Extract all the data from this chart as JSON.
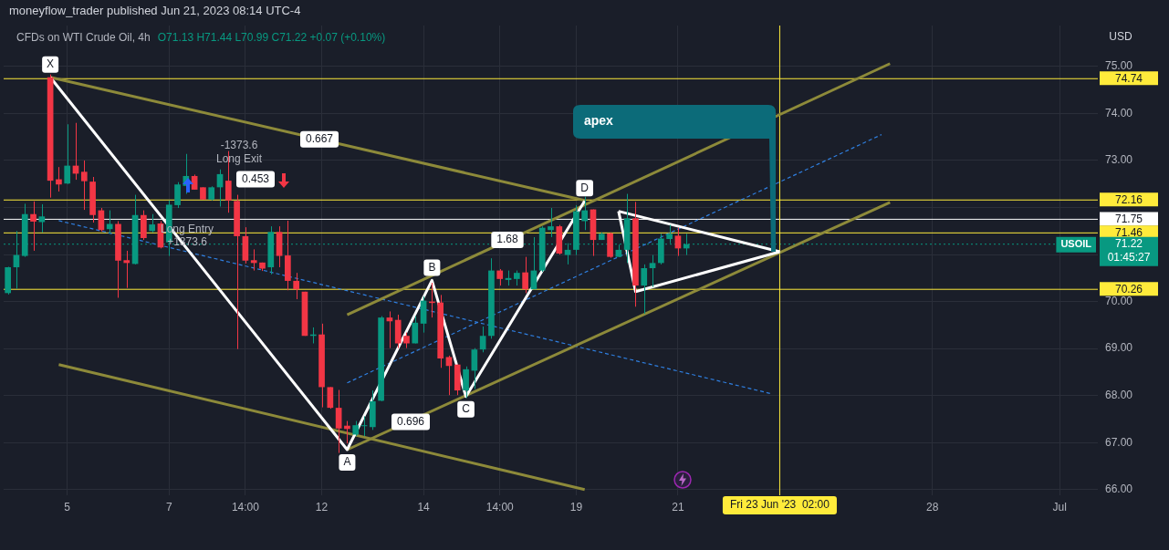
{
  "chart_data": {
    "type": "candlestick",
    "title": "CFDs on WTI Crude Oil, 4h",
    "subtitle": "O71.13 H71.44 L70.99 C71.22 +0.07 (+0.10%)",
    "ylabel": "USD",
    "categories": [
      null,
      null,
      null,
      null,
      null,
      null,
      null,
      "5",
      null,
      null,
      null,
      null,
      null,
      null,
      null,
      null,
      null,
      null,
      null,
      "7",
      null,
      null,
      null,
      null,
      null,
      null,
      null,
      null,
      "14:00",
      null,
      null,
      null,
      null,
      null,
      null,
      null,
      null,
      "12",
      null,
      null,
      null,
      null,
      null,
      null,
      null,
      null,
      null,
      null,
      null,
      "14",
      null,
      null,
      null,
      null,
      null,
      null,
      null,
      null,
      "14:00",
      null,
      null,
      null,
      null,
      null,
      null,
      null,
      null,
      "19",
      null,
      null,
      null,
      null,
      null,
      null,
      null,
      null,
      null,
      null,
      null,
      "21",
      null,
      null,
      null,
      null,
      null,
      null,
      null,
      null,
      null,
      null,
      null,
      "Fri 23 Jun '23  02:00",
      null,
      null,
      null,
      null,
      null,
      null,
      null,
      null,
      null,
      null,
      null,
      null,
      null,
      null,
      null,
      null,
      null,
      "28",
      null,
      null,
      null,
      null,
      null,
      null,
      null,
      null,
      null,
      null,
      null,
      null,
      null,
      null,
      "Jul",
      null,
      null,
      null,
      null
    ],
    "colors": [
      "#089981",
      "#089981",
      "#089981",
      "#f23645",
      "#089981",
      "#f23645",
      "#f23645",
      "#089981",
      "#f23645",
      "#f23645",
      "#f23645",
      "#f23645",
      "#089981",
      "#f23645",
      "#f23645",
      "#089981",
      "#f23645",
      "#089981",
      "#f23645",
      "#089981",
      "#089981",
      "#089981",
      "#f23645",
      "#f23645",
      "#089981",
      "#089981",
      "#f23645",
      "#f23645",
      "#f23645",
      "#f23645",
      "#f23645",
      "#089981",
      "#f23645",
      "#f23645",
      "#f23645",
      "#f23645",
      "#089981",
      "#f23645",
      "#f23645",
      "#f23645",
      "#f23645",
      "#089981",
      "#089981",
      "#089981",
      "#089981",
      "#f23645",
      "#f23645",
      "#f23645",
      "#089981",
      "#089981",
      "#f23645",
      "#f23645",
      "#f23645",
      "#f23645",
      "#089981",
      "#089981",
      "#089981",
      "#089981",
      "#f23645",
      "#089981",
      "#089981",
      "#f23645",
      "#089981",
      "#089981",
      "#089981",
      "#f23645",
      "#089981",
      "#089981",
      "#089981",
      "#f23645",
      "#089981",
      "#f23645",
      "#089981",
      "#089981",
      "#f23645",
      "#089981",
      "#089981",
      "#089981",
      "#089981",
      "#f23645",
      "#089981",
      null,
      null,
      null,
      null,
      null,
      null,
      null,
      null,
      null,
      null,
      null,
      null,
      null,
      null,
      null,
      null,
      null,
      null,
      null,
      null,
      null,
      null,
      null,
      null,
      null,
      null,
      null,
      null,
      null,
      null,
      null,
      null,
      null,
      null,
      null,
      null,
      null,
      null,
      null,
      null,
      null,
      null,
      null,
      null,
      null,
      null,
      null,
      null
    ],
    "ohlc": [
      [
        70.18,
        70.74,
        70.15,
        70.73
      ],
      [
        70.73,
        71.5,
        70.27,
        70.99
      ],
      [
        70.97,
        72.08,
        70.95,
        71.86
      ],
      [
        71.86,
        72.13,
        71.08,
        71.7
      ],
      [
        71.69,
        72.07,
        71.47,
        71.81
      ],
      [
        74.77,
        74.83,
        72.21,
        72.57
      ],
      [
        72.6,
        72.86,
        72.34,
        72.49
      ],
      [
        72.51,
        73.77,
        72.5,
        72.89
      ],
      [
        72.89,
        73.8,
        72.59,
        72.72
      ],
      [
        72.76,
        73.0,
        71.95,
        72.56
      ],
      [
        72.55,
        72.65,
        71.68,
        71.84
      ],
      [
        71.94,
        71.99,
        71.49,
        71.52
      ],
      [
        71.54,
        71.94,
        71.44,
        71.65
      ],
      [
        71.65,
        71.71,
        70.08,
        70.87
      ],
      [
        70.88,
        71.08,
        70.29,
        70.82
      ],
      [
        70.8,
        72.27,
        70.79,
        71.84
      ],
      [
        71.84,
        71.94,
        71.31,
        71.35
      ],
      [
        71.5,
        71.86,
        71.47,
        71.64
      ],
      [
        71.66,
        71.71,
        71.13,
        71.15
      ],
      [
        71.26,
        72.15,
        70.97,
        72.06
      ],
      [
        72.05,
        72.54,
        71.99,
        72.49
      ],
      [
        72.46,
        73.14,
        72.29,
        72.67
      ],
      [
        72.67,
        72.7,
        72.38,
        72.38
      ],
      [
        72.43,
        72.43,
        72.17,
        72.17
      ],
      [
        72.17,
        72.45,
        72.15,
        72.43
      ],
      [
        72.43,
        72.81,
        72.02,
        72.71
      ],
      [
        72.57,
        73.2,
        71.89,
        72.15
      ],
      [
        72.14,
        72.27,
        68.99,
        71.39
      ],
      [
        71.39,
        71.58,
        70.81,
        70.87
      ],
      [
        70.88,
        71.11,
        70.66,
        70.82
      ],
      [
        70.83,
        70.83,
        70.65,
        70.7
      ],
      [
        70.73,
        71.6,
        70.58,
        71.48
      ],
      [
        71.48,
        71.6,
        70.73,
        70.97
      ],
      [
        70.98,
        71.72,
        70.24,
        70.44
      ],
      [
        70.44,
        70.61,
        70.05,
        70.26
      ],
      [
        70.21,
        70.21,
        69.27,
        69.27
      ],
      [
        69.27,
        69.45,
        69.11,
        69.3
      ],
      [
        69.3,
        69.53,
        67.75,
        68.18
      ],
      [
        68.18,
        68.18,
        67.72,
        67.74
      ],
      [
        67.74,
        68.12,
        66.78,
        67.3
      ],
      [
        67.36,
        67.46,
        66.98,
        67.29
      ],
      [
        67.17,
        67.46,
        67.14,
        67.37
      ],
      [
        67.35,
        67.56,
        67.14,
        67.36
      ],
      [
        67.33,
        68.11,
        67.27,
        67.88
      ],
      [
        67.89,
        69.69,
        67.88,
        69.66
      ],
      [
        69.66,
        69.79,
        69.01,
        69.58
      ],
      [
        69.61,
        69.72,
        69.01,
        69.11
      ],
      [
        69.27,
        69.34,
        69.01,
        69.11
      ],
      [
        69.11,
        69.69,
        69.11,
        69.55
      ],
      [
        69.53,
        70.11,
        69.34,
        70.02
      ],
      [
        70.0,
        70.4,
        69.66,
        69.97
      ],
      [
        69.98,
        70.14,
        68.59,
        68.79
      ],
      [
        68.82,
        68.85,
        68.01,
        68.63
      ],
      [
        68.66,
        68.66,
        68.01,
        68.11
      ],
      [
        68.11,
        68.62,
        67.95,
        68.56
      ],
      [
        68.53,
        69.01,
        68.14,
        68.98
      ],
      [
        68.98,
        69.47,
        68.92,
        69.27
      ],
      [
        69.27,
        70.92,
        69.21,
        70.66
      ],
      [
        70.66,
        70.69,
        70.34,
        70.48
      ],
      [
        70.46,
        70.66,
        70.34,
        70.5
      ],
      [
        70.48,
        70.66,
        70.34,
        70.61
      ],
      [
        70.62,
        70.95,
        70.18,
        70.26
      ],
      [
        70.26,
        71.37,
        70.26,
        70.66
      ],
      [
        70.66,
        71.6,
        70.63,
        71.57
      ],
      [
        71.52,
        71.99,
        71.37,
        71.6
      ],
      [
        71.6,
        71.63,
        71.0,
        71.02
      ],
      [
        70.99,
        71.24,
        70.79,
        71.1
      ],
      [
        71.1,
        72.05,
        70.99,
        71.92
      ],
      [
        71.71,
        72.23,
        71.52,
        71.94
      ],
      [
        71.96,
        71.96,
        70.97,
        71.31
      ],
      [
        71.31,
        71.47,
        71.31,
        71.44
      ],
      [
        71.45,
        71.47,
        70.93,
        70.95
      ],
      [
        70.95,
        71.21,
        70.95,
        71.1
      ],
      [
        71.1,
        72.29,
        70.82,
        71.77
      ],
      [
        71.77,
        72.12,
        69.89,
        70.34
      ],
      [
        70.34,
        70.79,
        69.74,
        70.71
      ],
      [
        70.71,
        70.99,
        70.31,
        70.82
      ],
      [
        70.82,
        71.44,
        70.79,
        71.34
      ],
      [
        71.33,
        71.63,
        71.24,
        71.44
      ],
      [
        71.4,
        71.57,
        70.97,
        71.13
      ],
      [
        71.13,
        71.44,
        70.99,
        71.22
      ],
      null,
      null,
      null,
      null,
      null,
      null,
      null,
      null,
      null,
      null,
      null,
      null,
      null,
      null,
      null,
      null,
      null,
      null,
      null,
      null,
      null,
      null,
      null,
      null,
      null,
      null,
      null,
      null,
      null,
      null,
      null,
      null,
      null,
      null,
      null,
      null,
      null,
      null,
      null,
      null,
      null,
      null,
      null,
      null,
      null,
      null,
      null,
      null
    ],
    "series": [
      {
        "type": "line",
        "color": "#ffffff",
        "values": [
          null,
          null,
          null,
          null,
          null,
          74.77,
          null,
          null,
          null,
          null,
          null,
          null,
          null,
          null,
          null,
          null,
          null,
          null,
          null,
          null,
          null,
          null,
          null,
          null,
          null,
          null,
          null,
          null,
          null,
          null,
          null,
          null,
          null,
          null,
          null,
          null,
          null,
          null,
          null,
          null,
          66.85,
          null,
          null,
          null,
          null,
          null,
          null,
          null,
          null,
          null,
          70.45,
          null,
          null,
          null,
          67.98,
          null,
          null,
          null,
          null,
          null,
          null,
          null,
          null,
          null,
          null,
          null,
          null,
          null,
          72.14,
          null,
          null,
          null,
          null,
          null,
          null,
          null,
          null,
          null,
          null,
          null,
          null,
          null,
          null,
          null,
          null,
          null,
          null,
          null,
          null,
          null,
          null,
          null,
          null,
          null,
          null,
          null,
          null,
          null,
          null,
          null,
          null,
          null,
          null,
          null,
          null,
          null,
          null,
          null,
          null,
          null,
          null,
          null,
          null,
          null,
          null,
          null,
          null,
          null,
          null,
          null,
          null,
          null,
          null,
          null,
          null,
          null,
          null,
          null,
          null
        ],
        "value_labels": [
          null,
          null,
          null,
          null,
          null,
          "X",
          null,
          null,
          null,
          null,
          null,
          null,
          null,
          null,
          null,
          null,
          null,
          null,
          null,
          null,
          null,
          null,
          null,
          null,
          null,
          null,
          null,
          null,
          null,
          null,
          null,
          null,
          null,
          null,
          null,
          null,
          null,
          null,
          null,
          null,
          "A",
          null,
          null,
          null,
          null,
          null,
          null,
          null,
          null,
          null,
          "B",
          null,
          null,
          null,
          "C",
          null,
          null,
          null,
          null,
          null,
          null,
          null,
          null,
          null,
          null,
          null,
          null,
          null,
          "D",
          null,
          null,
          null,
          null,
          null,
          null,
          null,
          null,
          null,
          null,
          null,
          null,
          null,
          null,
          null,
          null,
          null,
          null,
          null,
          null,
          null,
          null,
          null,
          null,
          null,
          null,
          null,
          null,
          null,
          null,
          null,
          null,
          null,
          null,
          null,
          null,
          null,
          null,
          null,
          null,
          null,
          null,
          null,
          null,
          null,
          null,
          null,
          null,
          null,
          null,
          null,
          null,
          null,
          null,
          null,
          null,
          null,
          null,
          null,
          null
        ]
      },
      {
        "type": "line",
        "color": "#ffffff",
        "values": [
          null,
          null,
          null,
          null,
          null,
          null,
          null,
          null,
          null,
          null,
          null,
          null,
          null,
          null,
          null,
          null,
          null,
          null,
          null,
          null,
          null,
          null,
          null,
          null,
          null,
          null,
          null,
          null,
          null,
          null,
          null,
          null,
          null,
          null,
          null,
          null,
          null,
          null,
          null,
          null,
          null,
          null,
          null,
          null,
          null,
          null,
          null,
          null,
          null,
          null,
          null,
          null,
          null,
          null,
          null,
          null,
          null,
          null,
          null,
          null,
          null,
          null,
          null,
          null,
          null,
          null,
          null,
          null,
          null,
          null,
          null,
          null,
          71.92,
          null,
          null,
          null,
          null,
          null,
          null,
          null,
          null,
          null,
          null,
          null,
          null,
          null,
          null,
          null,
          null,
          null,
          null,
          71.06,
          null,
          null,
          null,
          null,
          null,
          null,
          null,
          null,
          null,
          null,
          null,
          null,
          null,
          null,
          null,
          null,
          null,
          null,
          null,
          null,
          null,
          null,
          null,
          null,
          null,
          null,
          null,
          null,
          null,
          null,
          null,
          null,
          null,
          null,
          null,
          null,
          null
        ]
      },
      {
        "type": "line",
        "color": "#ffffff",
        "values": [
          null,
          null,
          null,
          null,
          null,
          null,
          null,
          null,
          null,
          null,
          null,
          null,
          null,
          null,
          null,
          null,
          null,
          null,
          null,
          null,
          null,
          null,
          null,
          null,
          null,
          null,
          null,
          null,
          null,
          null,
          null,
          null,
          null,
          null,
          null,
          null,
          null,
          null,
          null,
          null,
          null,
          null,
          null,
          null,
          null,
          null,
          null,
          null,
          null,
          null,
          null,
          null,
          null,
          null,
          null,
          null,
          null,
          null,
          null,
          null,
          null,
          null,
          null,
          null,
          null,
          null,
          null,
          null,
          null,
          null,
          null,
          null,
          71.92,
          null,
          70.21,
          null,
          null,
          null,
          null,
          null,
          null,
          null,
          null,
          null,
          null,
          null,
          null,
          null,
          null,
          null,
          null,
          71.06,
          null,
          null,
          null,
          null,
          null,
          null,
          null,
          null,
          null,
          null,
          null,
          null,
          null,
          null,
          null,
          null,
          null,
          null,
          null,
          null,
          null,
          null,
          null,
          null,
          null,
          null,
          null,
          null,
          null,
          null,
          null,
          null,
          null,
          null,
          null,
          null,
          null
        ]
      },
      {
        "type": "line",
        "color": "#8d8a3a",
        "values": [
          null,
          null,
          null,
          null,
          null,
          74.77,
          null,
          null,
          null,
          null,
          null,
          null,
          null,
          null,
          null,
          null,
          null,
          null,
          null,
          null,
          null,
          null,
          null,
          null,
          null,
          null,
          null,
          null,
          null,
          null,
          null,
          null,
          null,
          null,
          null,
          null,
          null,
          null,
          null,
          null,
          null,
          null,
          null,
          null,
          null,
          null,
          null,
          null,
          null,
          null,
          null,
          null,
          null,
          null,
          null,
          null,
          null,
          null,
          null,
          null,
          null,
          null,
          null,
          null,
          null,
          null,
          null,
          null,
          72.15,
          null,
          null,
          null,
          null,
          null,
          null,
          null,
          null,
          null,
          null,
          null,
          null,
          null,
          null,
          null,
          null,
          null,
          null,
          null,
          null,
          null,
          null,
          null,
          null,
          null,
          null,
          null,
          null,
          null,
          null,
          null,
          null,
          null,
          null,
          null,
          null,
          null,
          null,
          null,
          null,
          null,
          null,
          null,
          null,
          null,
          null,
          null,
          null,
          null,
          null,
          null,
          null,
          null,
          null,
          null,
          null,
          null,
          null,
          null,
          null
        ]
      },
      {
        "type": "line",
        "color": "#8d8a3a",
        "values": [
          null,
          null,
          null,
          null,
          null,
          null,
          68.66,
          null,
          null,
          null,
          null,
          null,
          null,
          null,
          null,
          null,
          null,
          null,
          null,
          null,
          null,
          null,
          null,
          null,
          null,
          null,
          null,
          null,
          null,
          null,
          null,
          null,
          null,
          null,
          null,
          null,
          null,
          null,
          null,
          null,
          null,
          null,
          null,
          null,
          null,
          null,
          null,
          null,
          null,
          null,
          null,
          null,
          null,
          null,
          null,
          null,
          null,
          null,
          null,
          null,
          null,
          null,
          null,
          null,
          null,
          null,
          null,
          null,
          66.0,
          null,
          null,
          null,
          null,
          null,
          null,
          null,
          null,
          null,
          null,
          null,
          null,
          null,
          null,
          null,
          null,
          null,
          null,
          null,
          null,
          null,
          null,
          null,
          null,
          null,
          null,
          null,
          null,
          null,
          null,
          null,
          null,
          null,
          null,
          null,
          null,
          null,
          null,
          null,
          null,
          null,
          null,
          null,
          null,
          null,
          null,
          null,
          null,
          null,
          null,
          null,
          null,
          null,
          null,
          null,
          null,
          null,
          null,
          null,
          null
        ]
      },
      {
        "type": "line",
        "color": "#8d8a3a",
        "values": [
          null,
          null,
          null,
          null,
          null,
          null,
          null,
          null,
          null,
          null,
          null,
          null,
          null,
          null,
          null,
          null,
          null,
          null,
          null,
          null,
          null,
          null,
          null,
          null,
          null,
          null,
          null,
          null,
          null,
          null,
          null,
          null,
          null,
          null,
          null,
          null,
          null,
          null,
          null,
          null,
          69.72,
          null,
          null,
          null,
          null,
          null,
          null,
          null,
          null,
          null,
          null,
          null,
          null,
          null,
          null,
          null,
          null,
          null,
          null,
          null,
          null,
          null,
          null,
          null,
          null,
          null,
          null,
          null,
          null,
          null,
          null,
          null,
          null,
          null,
          null,
          null,
          null,
          null,
          null,
          null,
          null,
          null,
          null,
          null,
          null,
          null,
          null,
          null,
          null,
          null,
          null,
          null,
          null,
          null,
          null,
          null,
          null,
          null,
          null,
          null,
          null,
          null,
          null,
          null,
          75.06,
          null,
          null,
          null,
          null,
          null,
          null,
          null,
          null,
          null,
          null,
          null,
          null,
          null,
          null,
          null,
          null,
          null,
          null,
          null,
          null,
          null,
          null,
          null,
          null
        ]
      },
      {
        "type": "line",
        "color": "#8d8a3a",
        "values": [
          null,
          null,
          null,
          null,
          null,
          null,
          null,
          null,
          null,
          null,
          null,
          null,
          null,
          null,
          null,
          null,
          null,
          null,
          null,
          null,
          null,
          null,
          null,
          null,
          null,
          null,
          null,
          null,
          null,
          null,
          null,
          null,
          null,
          null,
          null,
          null,
          null,
          null,
          null,
          null,
          66.85,
          null,
          null,
          null,
          null,
          null,
          null,
          null,
          null,
          null,
          null,
          null,
          null,
          null,
          null,
          null,
          null,
          null,
          null,
          null,
          null,
          null,
          null,
          null,
          null,
          null,
          null,
          null,
          null,
          null,
          null,
          null,
          null,
          null,
          null,
          null,
          null,
          null,
          null,
          null,
          null,
          null,
          null,
          null,
          null,
          null,
          null,
          null,
          null,
          null,
          null,
          null,
          null,
          null,
          null,
          null,
          null,
          null,
          null,
          null,
          null,
          null,
          null,
          null,
          72.11,
          null,
          null,
          null,
          null,
          null,
          null,
          null,
          null,
          null,
          null,
          null,
          null,
          null,
          null,
          null,
          null,
          null,
          null,
          null,
          null,
          null,
          null,
          null,
          null
        ]
      },
      {
        "type": "line",
        "color": "#2f7fe0",
        "line_style": "dashed",
        "values": [
          null,
          null,
          null,
          null,
          null,
          null,
          71.72,
          null,
          null,
          null,
          null,
          null,
          null,
          null,
          null,
          null,
          null,
          null,
          null,
          null,
          null,
          null,
          null,
          null,
          null,
          null,
          null,
          null,
          null,
          null,
          null,
          null,
          null,
          null,
          null,
          null,
          null,
          null,
          null,
          null,
          null,
          null,
          null,
          null,
          null,
          null,
          null,
          null,
          null,
          null,
          null,
          null,
          null,
          null,
          null,
          null,
          null,
          null,
          null,
          null,
          null,
          null,
          null,
          null,
          null,
          null,
          null,
          null,
          null,
          null,
          null,
          null,
          null,
          null,
          null,
          null,
          null,
          null,
          null,
          null,
          null,
          null,
          null,
          null,
          null,
          null,
          null,
          null,
          null,
          null,
          68.04,
          null,
          null,
          null,
          null,
          null,
          null,
          null,
          null,
          null,
          null,
          null,
          null,
          null,
          null,
          null,
          null,
          null,
          null,
          null,
          null,
          null,
          null,
          null,
          null,
          null,
          null,
          null,
          null,
          null,
          null,
          null,
          null,
          null,
          null,
          null,
          null,
          null,
          null
        ]
      },
      {
        "type": "line",
        "color": "#2f7fe0",
        "line_style": "dashed",
        "values": [
          null,
          null,
          null,
          null,
          null,
          null,
          null,
          null,
          null,
          null,
          null,
          null,
          null,
          null,
          null,
          null,
          null,
          null,
          null,
          null,
          null,
          null,
          null,
          null,
          null,
          null,
          null,
          null,
          null,
          null,
          null,
          null,
          null,
          null,
          null,
          null,
          null,
          null,
          null,
          null,
          68.27,
          null,
          null,
          null,
          null,
          null,
          null,
          null,
          null,
          null,
          null,
          null,
          null,
          null,
          null,
          null,
          null,
          null,
          null,
          null,
          null,
          null,
          null,
          null,
          null,
          null,
          null,
          null,
          null,
          null,
          null,
          null,
          null,
          null,
          null,
          null,
          null,
          null,
          null,
          null,
          null,
          null,
          null,
          null,
          null,
          null,
          null,
          null,
          null,
          null,
          null,
          null,
          null,
          null,
          null,
          null,
          null,
          null,
          null,
          null,
          null,
          null,
          null,
          73.55,
          null,
          null,
          null,
          null,
          null,
          null,
          null,
          null,
          null,
          null,
          null,
          null,
          null,
          null,
          null,
          null,
          null,
          null,
          null,
          null,
          null,
          null,
          null,
          null,
          null
        ]
      }
    ],
    "ylim": [
      65.88,
      75.87
    ],
    "yticks": [
      {
        "value": 66,
        "label": "66.00"
      },
      {
        "value": 67,
        "label": "67.00"
      },
      {
        "value": 68,
        "label": "68.00"
      },
      {
        "value": 69,
        "label": "69.00"
      },
      {
        "value": 70,
        "label": "70.00"
      },
      {
        "value": 71,
        "label": null
      },
      {
        "value": 72,
        "label": null
      },
      {
        "value": 73,
        "label": "73.00"
      },
      {
        "value": 74,
        "label": "74.00"
      },
      {
        "value": 75,
        "label": "75.00"
      }
    ],
    "grid": true,
    "ref_lines": [
      {
        "axis": "y",
        "value": 74.74,
        "color": "#ffeb3b",
        "label": "74.74"
      },
      {
        "axis": "y",
        "value": 72.16,
        "color": "#ffeb3b",
        "label": "72.16"
      },
      {
        "axis": "y",
        "value": 71.75,
        "color": "#ffffff",
        "label": "71.75"
      },
      {
        "axis": "y",
        "value": 71.46,
        "color": "#ffeb3b",
        "label": "71.46"
      },
      {
        "axis": "y",
        "value": 70.26,
        "color": "#ffeb3b",
        "label": "70.26"
      },
      {
        "axis": "y",
        "value": 71.22,
        "color": "#089981",
        "line_style": "dotted",
        "label": "71.22"
      },
      {
        "axis": "x",
        "value": "Fri 23 Jun '23  02:00",
        "color": "#ffeb3b"
      }
    ],
    "annotations": [
      "moneyflow_trader published Jun 21, 2023 08:14 UTC-4",
      "-1373.6",
      "Long Exit",
      "Long Entry",
      "+1373.6",
      "apex",
      "01:45:27",
      "USOIL",
      {
        "text": "0.667",
        "y": 73.45
      },
      {
        "text": "0.453",
        "y": 72.6
      },
      {
        "text": "1.68",
        "y": 71.31
      },
      {
        "text": "0.696",
        "y": 67.44
      }
    ]
  }
}
